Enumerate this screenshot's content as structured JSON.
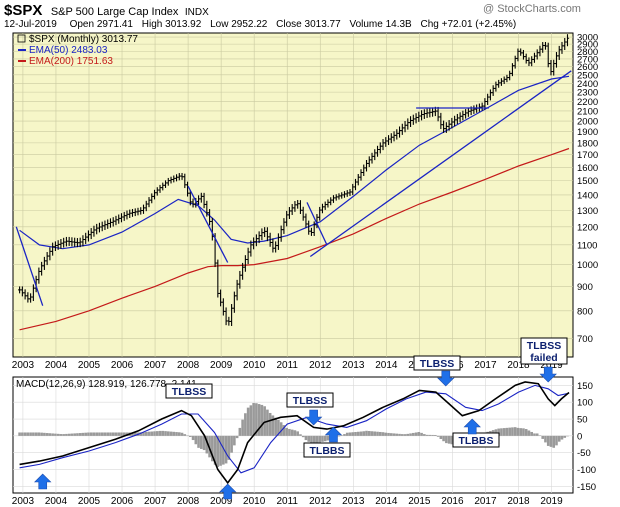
{
  "header": {
    "symbol": "$SPX",
    "name": "S&P 500 Large Cap Index",
    "exchange": "INDX",
    "watermark": "@ StockCharts.com",
    "date": "12-Jul-2019",
    "open_label": "Open",
    "open": "2971.41",
    "high_label": "High",
    "high": "3013.92",
    "low_label": "Low",
    "low": "2952.22",
    "close_label": "Close",
    "close": "3013.77",
    "volume_label": "Volume",
    "volume": "14.3B",
    "chg_label": "Chg",
    "chg": "+72.01 (+2.45%)",
    "chg_color": "#000000"
  },
  "legend": [
    {
      "text": "$SPX (Monthly) 3013.77",
      "color": "#000000"
    },
    {
      "text": "EMA(50) 2483.03",
      "color": "#1a24c4"
    },
    {
      "text": "EMA(200) 1751.63",
      "color": "#c41a1a"
    }
  ],
  "macd_label": "MACD(12,26,9) 128.919, 126.778, 2.141",
  "annotations": {
    "tlbss_2008": "TLBSS",
    "tlbss_2011": "TLBSS",
    "tlbbs_2012": "TLBBS",
    "tlbss_2015": "TLBSS",
    "tlbbs_2016": "TLBBS",
    "tlbss_failed": "TLBSS\nfailed"
  },
  "chart_data": {
    "type": "line",
    "title": "$SPX S&P 500 Large Cap Index INDX",
    "x_years": [
      "2003",
      "2004",
      "2005",
      "2006",
      "2007",
      "2008",
      "2009",
      "2010",
      "2011",
      "2012",
      "2013",
      "2014",
      "2015",
      "2016",
      "2017",
      "2018",
      "2019"
    ],
    "price_ticks": [
      700,
      800,
      900,
      1000,
      1100,
      1200,
      1300,
      1400,
      1500,
      1600,
      1700,
      1800,
      1900,
      2000,
      2100,
      2200,
      2300,
      2400,
      2500,
      2600,
      2700,
      2800,
      2900,
      3000
    ],
    "price_scale": "log",
    "price_ylim": [
      640,
      3060
    ],
    "macd_ticks": [
      -150,
      -100,
      -50,
      0,
      50,
      100,
      150
    ],
    "macd_ylim": [
      -170,
      175
    ],
    "colors": {
      "price": "#000000",
      "ema50": "#1a24c4",
      "ema200": "#c41a1a",
      "signal": "#1a24c4",
      "macd": "#000000",
      "histogram": "#9a9a9a",
      "trendline": "#1a24c4",
      "arrow": "#1f6fe8",
      "panel_bg": "#f6f6c8"
    },
    "series": [
      {
        "name": "$SPX (Monthly)",
        "x": [
          2002.9,
          2003.2,
          2003.5,
          2003.9,
          2004.3,
          2004.7,
          2005.2,
          2005.7,
          2006.2,
          2006.6,
          2007.0,
          2007.4,
          2007.8,
          2008.1,
          2008.4,
          2008.7,
          2008.9,
          2009.2,
          2009.5,
          2009.9,
          2010.3,
          2010.6,
          2011.0,
          2011.3,
          2011.7,
          2012.0,
          2012.4,
          2012.9,
          2013.4,
          2013.9,
          2014.3,
          2014.7,
          2015.1,
          2015.5,
          2015.7,
          2016.1,
          2016.5,
          2016.9,
          2017.3,
          2017.7,
          2018.0,
          2018.3,
          2018.6,
          2018.8,
          2018.95,
          2019.2,
          2019.53
        ],
        "values": [
          885,
          840,
          975,
          1090,
          1120,
          1110,
          1190,
          1230,
          1280,
          1300,
          1420,
          1500,
          1540,
          1330,
          1390,
          1200,
          870,
          740,
          920,
          1100,
          1180,
          1070,
          1280,
          1350,
          1150,
          1310,
          1380,
          1420,
          1630,
          1800,
          1880,
          2000,
          2070,
          2100,
          1920,
          2020,
          2100,
          2150,
          2380,
          2480,
          2820,
          2640,
          2800,
          2920,
          2500,
          2800,
          3013.77
        ]
      },
      {
        "name": "EMA(50)",
        "x": [
          2002.9,
          2003.5,
          2004.2,
          2005.0,
          2006.0,
          2007.0,
          2007.7,
          2008.3,
          2008.8,
          2009.3,
          2009.8,
          2010.3,
          2011.0,
          2012.0,
          2013.0,
          2014.0,
          2015.0,
          2016.0,
          2017.0,
          2018.0,
          2019.0,
          2019.53
        ],
        "values": [
          1180,
          1100,
          1080,
          1100,
          1170,
          1280,
          1370,
          1330,
          1240,
          1130,
          1110,
          1120,
          1150,
          1230,
          1390,
          1580,
          1780,
          1940,
          2120,
          2320,
          2450,
          2483.03
        ]
      },
      {
        "name": "EMA(200)",
        "x": [
          2002.9,
          2004.0,
          2005.0,
          2006.0,
          2007.0,
          2008.0,
          2008.6,
          2009.0,
          2009.5,
          2010.0,
          2011.0,
          2012.0,
          2013.0,
          2014.0,
          2015.0,
          2016.0,
          2017.0,
          2018.0,
          2019.0,
          2019.53
        ],
        "values": [
          730,
          760,
          800,
          850,
          900,
          960,
          990,
          995,
          995,
          1000,
          1030,
          1090,
          1160,
          1250,
          1340,
          1420,
          1510,
          1610,
          1700,
          1751.63
        ]
      }
    ],
    "macd_series": [
      {
        "name": "MACD",
        "x": [
          2002.9,
          2003.5,
          2004.2,
          2005.0,
          2005.8,
          2006.5,
          2007.2,
          2007.8,
          2008.1,
          2008.5,
          2008.9,
          2009.2,
          2009.5,
          2009.8,
          2010.3,
          2010.8,
          2011.3,
          2011.8,
          2012.2,
          2012.7,
          2013.3,
          2013.9,
          2014.5,
          2015.0,
          2015.5,
          2015.9,
          2016.3,
          2016.8,
          2017.3,
          2017.9,
          2018.2,
          2018.6,
          2018.9,
          2019.1,
          2019.3,
          2019.53
        ],
        "values": [
          -85,
          -75,
          -60,
          -35,
          -10,
          15,
          50,
          75,
          60,
          0,
          -100,
          -140,
          -100,
          -20,
          40,
          55,
          60,
          25,
          20,
          30,
          55,
          85,
          110,
          135,
          130,
          95,
          60,
          75,
          110,
          150,
          160,
          155,
          110,
          90,
          110,
          128.919
        ]
      },
      {
        "name": "Signal",
        "x": [
          2002.9,
          2003.5,
          2004.2,
          2005.0,
          2005.8,
          2006.5,
          2007.2,
          2007.8,
          2008.3,
          2008.8,
          2009.2,
          2009.6,
          2010.0,
          2010.5,
          2011.0,
          2011.6,
          2012.2,
          2012.8,
          2013.4,
          2014.0,
          2014.6,
          2015.2,
          2015.8,
          2016.4,
          2016.9,
          2017.4,
          2018.0,
          2018.5,
          2018.9,
          2019.2,
          2019.53
        ],
        "values": [
          -95,
          -85,
          -65,
          -45,
          -20,
          5,
          35,
          65,
          65,
          10,
          -60,
          -110,
          -95,
          -20,
          35,
          55,
          35,
          25,
          45,
          80,
          110,
          130,
          125,
          85,
          75,
          95,
          130,
          150,
          140,
          120,
          126.778
        ]
      }
    ],
    "trendlines": [
      {
        "name": "trend-2002",
        "x": [
          2002.8,
          2003.6
        ],
        "values": [
          1200,
          820
        ]
      },
      {
        "name": "trend-2008",
        "x": [
          2008.0,
          2009.2
        ],
        "values": [
          1460,
          1010
        ]
      },
      {
        "name": "trend-2011",
        "x": [
          2011.6,
          2012.2
        ],
        "values": [
          1350,
          1100
        ]
      },
      {
        "name": "support-2012",
        "x": [
          2011.7,
          2019.6
        ],
        "values": [
          1040,
          2550
        ]
      },
      {
        "name": "resistance-2015",
        "x": [
          2014.9,
          2017.1
        ],
        "values": [
          2130,
          2130
        ]
      }
    ]
  }
}
